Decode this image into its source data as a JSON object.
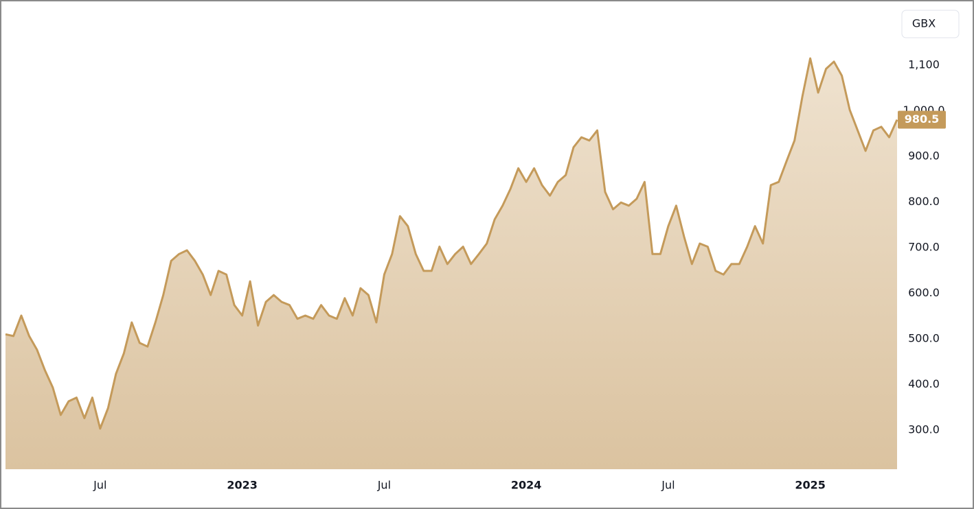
{
  "chart_data": {
    "type": "area",
    "currency": "GBX",
    "categories": [
      null,
      null,
      null,
      null,
      null,
      null,
      null,
      null,
      null,
      null,
      null,
      null,
      "Jul",
      null,
      null,
      null,
      null,
      null,
      null,
      null,
      null,
      null,
      null,
      null,
      null,
      null,
      null,
      null,
      null,
      null,
      "2023",
      null,
      null,
      null,
      null,
      null,
      null,
      null,
      null,
      null,
      null,
      null,
      null,
      null,
      null,
      null,
      null,
      null,
      "Jul",
      null,
      null,
      null,
      null,
      null,
      null,
      null,
      null,
      null,
      null,
      null,
      null,
      null,
      null,
      null,
      null,
      null,
      "2024",
      null,
      null,
      null,
      null,
      null,
      null,
      null,
      null,
      null,
      null,
      null,
      null,
      null,
      null,
      null,
      null,
      null,
      "Jul",
      null,
      null,
      null,
      null,
      null,
      null,
      null,
      null,
      null,
      null,
      null,
      null,
      null,
      null,
      null,
      null,
      null,
      "2025",
      null,
      null,
      null,
      null,
      null,
      null,
      null,
      null,
      null,
      null,
      null
    ],
    "series": [
      {
        "color": "#c49a5a",
        "values": [
          510,
          506,
          551,
          506,
          476,
          431,
          393,
          333,
          363,
          371,
          326,
          371,
          303,
          348,
          423,
          468,
          536,
          491,
          483,
          536,
          596,
          671,
          686,
          694,
          671,
          641,
          596,
          649,
          641,
          574,
          551,
          626,
          529,
          581,
          596,
          581,
          574,
          544,
          551,
          544,
          574,
          551,
          544,
          589,
          551,
          611,
          596,
          536,
          641,
          686,
          769,
          747,
          686,
          649,
          649,
          702,
          664,
          686,
          702,
          664,
          686,
          709,
          762,
          792,
          829,
          874,
          844,
          874,
          837,
          814,
          844,
          859,
          920,
          942,
          935,
          957,
          822,
          784,
          799,
          792,
          807,
          844,
          686,
          686,
          747,
          792,
          724,
          664,
          709,
          702,
          649,
          641,
          664,
          664,
          702,
          747,
          709,
          837,
          844,
          890,
          935,
          1032,
          1115,
          1040,
          1092,
          1108,
          1077,
          1002,
          957,
          912,
          957,
          965,
          942,
          980.5
        ]
      }
    ],
    "ylim": [
      214,
      1228
    ],
    "yticks": [
      {
        "value": 1100,
        "label": "1,100"
      },
      {
        "value": 1000,
        "label": "1,000.0"
      },
      {
        "value": 900,
        "label": "900.0"
      },
      {
        "value": 800,
        "label": "800.0"
      },
      {
        "value": 700,
        "label": "700.0"
      },
      {
        "value": 600,
        "label": "600.0"
      },
      {
        "value": 500,
        "label": "500.0"
      },
      {
        "value": 400,
        "label": "400.0"
      },
      {
        "value": 300,
        "label": "300.0"
      }
    ],
    "grid": false
  }
}
